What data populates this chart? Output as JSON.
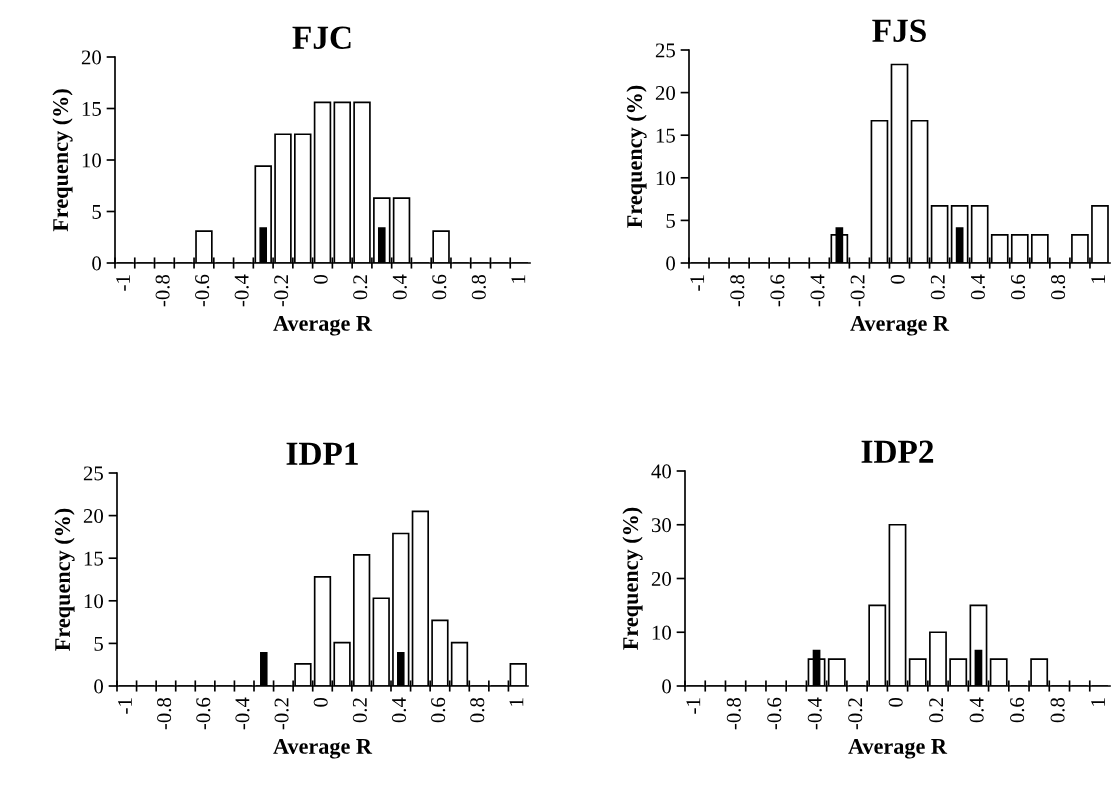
{
  "chart_data": [
    {
      "type": "bar",
      "title": "FJC",
      "xlabel": "Average R",
      "ylabel": "Frequency (%)",
      "categories": [
        "-1",
        null,
        "-0.8",
        null,
        "-0.6",
        null,
        "-0.4",
        null,
        "-0.2",
        null,
        "0",
        null,
        "0.2",
        null,
        "0.4",
        null,
        "0.6",
        null,
        "0.8",
        null,
        "1"
      ],
      "series": [
        {
          "color": "#ffffff",
          "values": [
            0,
            0,
            0,
            0,
            3.1,
            0,
            0,
            9.4,
            12.5,
            12.5,
            15.6,
            15.6,
            15.6,
            6.3,
            6.3,
            0,
            3.1,
            0,
            0,
            0,
            0
          ]
        },
        {
          "color": "#000000",
          "values": [
            null,
            null,
            null,
            null,
            null,
            null,
            null,
            3.4,
            null,
            null,
            null,
            null,
            null,
            3.4,
            null,
            null,
            null,
            null,
            null,
            null,
            null
          ]
        }
      ],
      "ylim": [
        0,
        20
      ],
      "yticks": [
        0,
        5,
        10,
        15,
        20
      ]
    },
    {
      "type": "bar",
      "title": "FJS",
      "xlabel": "Average R",
      "ylabel": "Frequency (%)",
      "categories": [
        "-1",
        null,
        "-0.8",
        null,
        "-0.6",
        null,
        "-0.4",
        null,
        "-0.2",
        null,
        "0",
        null,
        "0.2",
        null,
        "0.4",
        null,
        "0.6",
        null,
        "0.8",
        null,
        "1"
      ],
      "series": [
        {
          "color": "#ffffff",
          "values": [
            0,
            0,
            0,
            0,
            0,
            0,
            0,
            3.3,
            0,
            16.7,
            23.3,
            16.7,
            6.7,
            6.7,
            6.7,
            3.3,
            3.3,
            3.3,
            0,
            3.3,
            6.7
          ]
        },
        {
          "color": "#000000",
          "values": [
            null,
            null,
            null,
            null,
            null,
            null,
            null,
            4.1,
            null,
            null,
            null,
            null,
            null,
            4.1,
            null,
            null,
            null,
            null,
            null,
            null,
            null
          ]
        }
      ],
      "ylim": [
        0,
        25
      ],
      "yticks": [
        0,
        5,
        10,
        15,
        20,
        25
      ]
    },
    {
      "type": "bar",
      "title": "IDP1",
      "xlabel": "Average R",
      "ylabel": "Frequency (%)",
      "categories": [
        "-1",
        null,
        "-0.8",
        null,
        "-0.6",
        null,
        "-0.4",
        null,
        "-0.2",
        null,
        "0",
        null,
        "0.2",
        null,
        "0.4",
        null,
        "0.6",
        null,
        "0.8",
        null,
        "1"
      ],
      "series": [
        {
          "color": "#ffffff",
          "values": [
            0,
            0,
            0,
            0,
            0,
            0,
            0,
            0,
            0,
            2.6,
            12.8,
            5.1,
            15.4,
            10.3,
            17.9,
            20.5,
            7.7,
            5.1,
            0,
            0,
            2.6
          ]
        },
        {
          "color": "#000000",
          "values": [
            null,
            null,
            null,
            null,
            null,
            null,
            null,
            3.9,
            null,
            null,
            null,
            null,
            null,
            null,
            3.9,
            null,
            null,
            null,
            null,
            null,
            null
          ]
        }
      ],
      "ylim": [
        0,
        25
      ],
      "yticks": [
        0,
        5,
        10,
        15,
        20,
        25
      ]
    },
    {
      "type": "bar",
      "title": "IDP2",
      "xlabel": "Average R",
      "ylabel": "Frequency (%)",
      "categories": [
        "-1",
        null,
        "-0.8",
        null,
        "-0.6",
        null,
        "-0.4",
        null,
        "-0.2",
        null,
        "0",
        null,
        "0.2",
        null,
        "0.4",
        null,
        "0.6",
        null,
        "0.8",
        null,
        "1"
      ],
      "series": [
        {
          "color": "#ffffff",
          "values": [
            0,
            0,
            0,
            0,
            0,
            0,
            5,
            5,
            0,
            15,
            30,
            5,
            10,
            5,
            15,
            5,
            0,
            5,
            0,
            0,
            0
          ]
        },
        {
          "color": "#000000",
          "values": [
            null,
            null,
            null,
            null,
            null,
            null,
            6.6,
            null,
            null,
            null,
            null,
            null,
            null,
            null,
            6.6,
            null,
            null,
            null,
            null,
            null,
            null
          ]
        }
      ],
      "ylim": [
        0,
        40
      ],
      "yticks": [
        0,
        10,
        20,
        30,
        40
      ]
    }
  ]
}
